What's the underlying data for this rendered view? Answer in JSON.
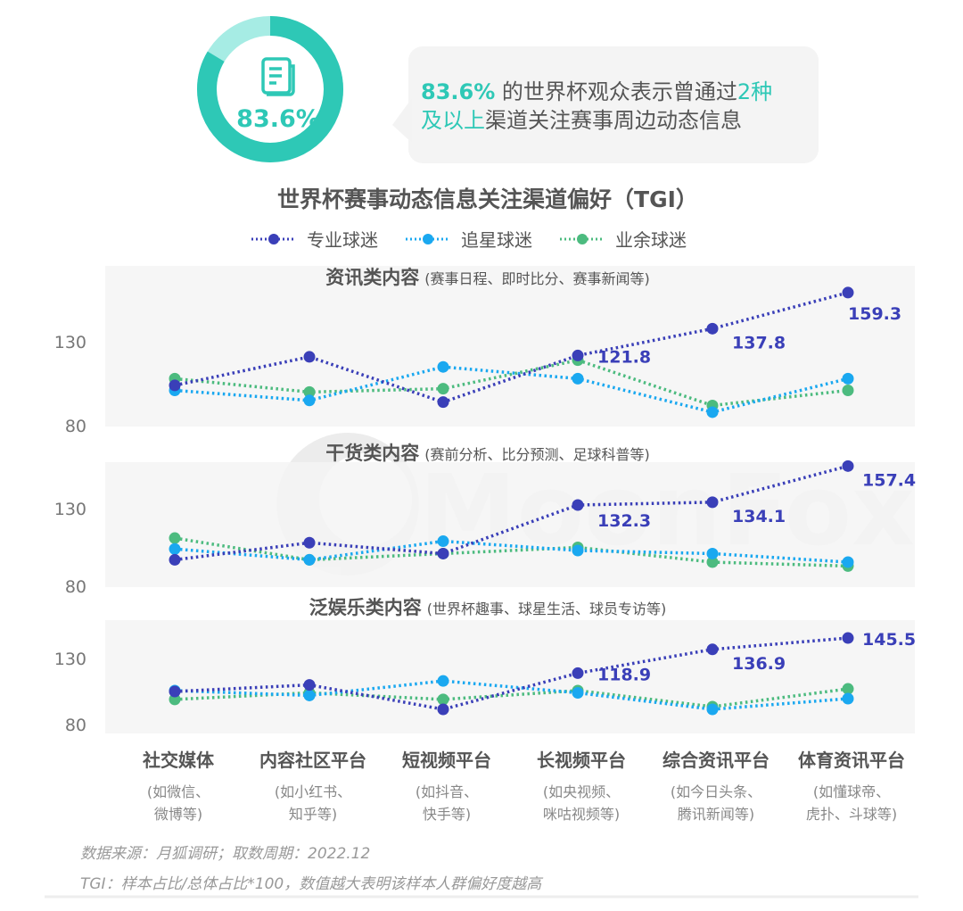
{
  "headline": {
    "donut_value": "83.6%",
    "donut_fraction": 0.836,
    "icon": "document-icon",
    "text_highlight_1": "83.6%",
    "text_part_1": " 的世界杯观众表示曾通过",
    "text_highlight_2": "2种",
    "text_highlight_3": "及以上",
    "text_part_2": "渠道关注赛事周边动态信息"
  },
  "watermark": "MoonFox",
  "colors": {
    "accent": "#2ec8b6",
    "accent_light": "#a6ece4",
    "professional": "#3a3fb8",
    "star": "#1aa8f0",
    "casual": "#4cbb7f",
    "panel_bg": "#f5f5f5",
    "text": "#555555"
  },
  "footer": {
    "source": "数据来源：月狐调研；取数周期：2022.12",
    "note": "TGI：样本占比/总体占比*100，数值越大表明该样本人群偏好度越高"
  },
  "chart_data": {
    "type": "line",
    "title": "世界杯赛事动态信息关注渠道偏好（TGI）",
    "legend": [
      "专业球迷",
      "追星球迷",
      "业余球迷"
    ],
    "legend_placement": "top",
    "categories": [
      "社交媒体",
      "内容社区平台",
      "短视频平台",
      "长视频平台",
      "综合资讯平台",
      "体育资讯平台"
    ],
    "category_notes": [
      [
        "(如微信、",
        "微博等)"
      ],
      [
        "(如小红书、",
        "知乎等)"
      ],
      [
        "(如抖音、",
        "快手等)"
      ],
      [
        "(如央视频、",
        "咪咕视频等)"
      ],
      [
        "(如今日头条、",
        "腾讯新闻等)"
      ],
      [
        "(如懂球帝、",
        "虎扑、斗球等)"
      ]
    ],
    "grid": false,
    "panels": [
      {
        "title": "资讯类内容",
        "subtitle": "(赛事日程、即时比分、赛事新闻等)",
        "yticks": [
          "130",
          "80"
        ],
        "ytick_values": [
          130,
          80
        ],
        "series": [
          {
            "name": "专业球迷",
            "values": [
              104,
              121,
              94,
              121.8,
              137.8,
              159.3
            ],
            "labels": [
              "",
              "",
              "",
              "121.8",
              "137.8",
              "159.3"
            ]
          },
          {
            "name": "追星球迷",
            "values": [
              101,
              95,
              115,
              108,
              88,
              108
            ]
          },
          {
            "name": "业余球迷",
            "values": [
              108,
              100,
              102,
              119,
              92,
              101
            ]
          }
        ]
      },
      {
        "title": "干货类内容",
        "subtitle": "(赛前分析、比分预测、足球科普等)",
        "yticks": [
          "130",
          "80"
        ],
        "ytick_values": [
          130,
          80
        ],
        "series": [
          {
            "name": "专业球迷",
            "values": [
              97,
              108,
              101,
              132.3,
              134.1,
              157.4
            ],
            "labels": [
              "",
              "",
              "",
              "132.3",
              "134.1",
              "157.4"
            ]
          },
          {
            "name": "追星球迷",
            "values": [
              104,
              97,
              109,
              103,
              101,
              95.5
            ]
          },
          {
            "name": "业余球迷",
            "values": [
              111,
              97,
              101,
              105,
              95.5,
              93
            ]
          }
        ]
      },
      {
        "title": "泛娱乐类内容",
        "subtitle": "(世界杯趣事、球星生活、球员专访等)",
        "yticks": [
          "130",
          "80"
        ],
        "ytick_values": [
          130,
          80
        ],
        "series": [
          {
            "name": "专业球迷",
            "values": [
              105,
              110,
              91.5,
              118.9,
              136.9,
              145.5
            ],
            "labels": [
              "",
              "",
              "",
              "118.9",
              "136.9",
              "145.5"
            ]
          },
          {
            "name": "追星球迷",
            "values": [
              105.7,
              102,
              113,
              104,
              91.5,
              99.6
            ]
          },
          {
            "name": "业余球迷",
            "values": [
              99,
              104,
              99,
              105.7,
              93.5,
              107
            ]
          }
        ]
      }
    ]
  }
}
